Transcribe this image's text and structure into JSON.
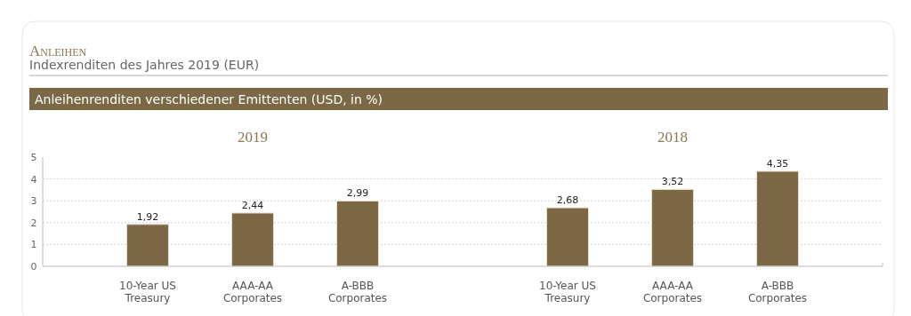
{
  "chart_data": {
    "type": "bar",
    "title": "Anleihen",
    "subtitle": "Indexrenditen des Jahres 2019 (EUR)",
    "annotations": [
      "Anleihenrenditen verschiedener Emittenten (USD, in %)",
      "2019",
      "2018"
    ],
    "categories": [
      "10-Year US Treasury",
      "AAA-AA Corporates",
      "A-BBB Corporates",
      "10-Year US Treasury",
      "AAA-AA Corporates",
      "A-BBB Corporates"
    ],
    "values": [
      1.92,
      2.44,
      2.99,
      2.68,
      3.52,
      4.35
    ],
    "color": "#7d6846",
    "ylim": [
      0,
      5
    ],
    "yticks": [
      0,
      1,
      2,
      3,
      4,
      5
    ],
    "grid": "y",
    "value_labels": [
      "1,92",
      "2,44",
      "2,99",
      "2,68",
      "3,52",
      "4,35"
    ]
  }
}
